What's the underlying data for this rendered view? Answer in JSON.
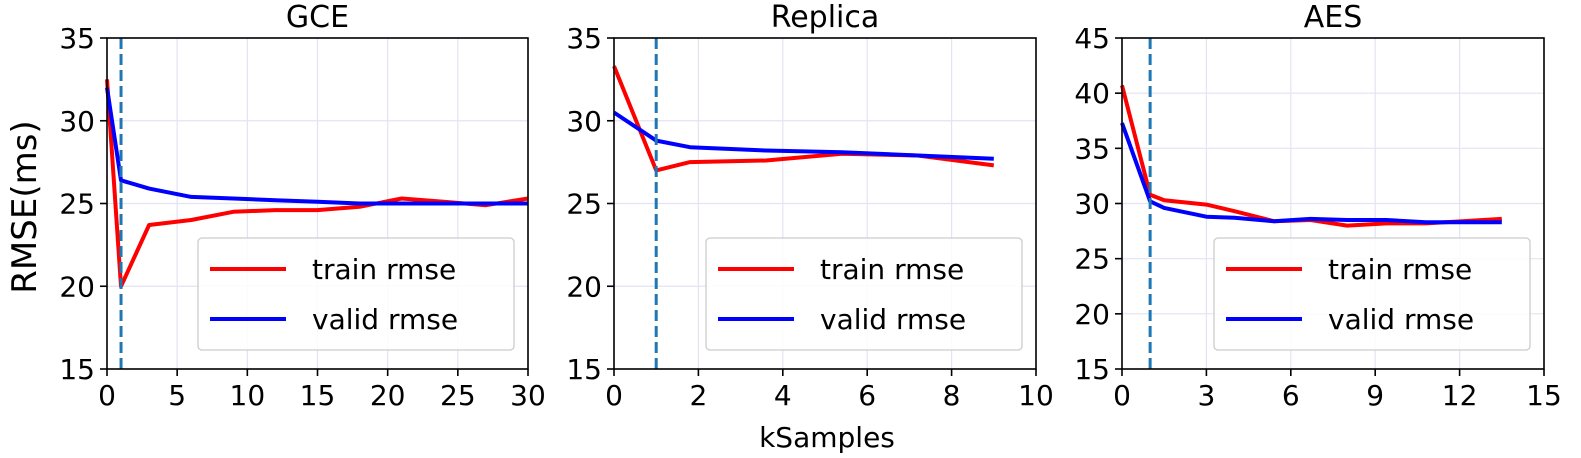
{
  "figure": {
    "ylabel": "RMSE(ms)",
    "xlabel": "kSamples"
  },
  "chart_data": [
    {
      "type": "line",
      "title": "GCE",
      "xlim": [
        0,
        30
      ],
      "ylim": [
        15,
        35
      ],
      "xticks": [
        0,
        5,
        10,
        15,
        20,
        25,
        30
      ],
      "yticks": [
        15,
        20,
        25,
        30,
        35
      ],
      "grid": true,
      "legend": "lower-right",
      "vline": 1,
      "series": [
        {
          "name": "train rmse",
          "color": "#ff0000",
          "x": [
            0,
            1,
            3,
            6,
            9,
            12,
            15,
            18,
            21,
            24,
            27,
            30
          ],
          "y": [
            32.5,
            20.0,
            23.7,
            24.0,
            24.5,
            24.6,
            24.6,
            24.8,
            25.3,
            25.1,
            24.9,
            25.3
          ]
        },
        {
          "name": "valid rmse",
          "color": "#0000ff",
          "x": [
            0,
            1,
            3,
            6,
            9,
            12,
            15,
            18,
            21,
            24,
            27,
            30
          ],
          "y": [
            32.0,
            26.4,
            25.9,
            25.4,
            25.3,
            25.2,
            25.1,
            25.0,
            25.0,
            25.0,
            25.0,
            25.0
          ]
        }
      ]
    },
    {
      "type": "line",
      "title": "Replica",
      "xlim": [
        0,
        10
      ],
      "ylim": [
        15,
        35
      ],
      "xticks": [
        0,
        2,
        4,
        6,
        8,
        10
      ],
      "yticks": [
        15,
        20,
        25,
        30,
        35
      ],
      "grid": true,
      "legend": "lower-right",
      "vline": 1,
      "series": [
        {
          "name": "train rmse",
          "color": "#ff0000",
          "x": [
            0,
            1,
            1.8,
            3.6,
            5.4,
            7.2,
            9
          ],
          "y": [
            33.3,
            27.0,
            27.5,
            27.6,
            28.0,
            27.9,
            27.3
          ]
        },
        {
          "name": "valid rmse",
          "color": "#0000ff",
          "x": [
            0,
            1,
            1.8,
            3.6,
            5.4,
            7.2,
            9
          ],
          "y": [
            30.5,
            28.8,
            28.4,
            28.2,
            28.1,
            27.9,
            27.7
          ]
        }
      ]
    },
    {
      "type": "line",
      "title": "AES",
      "xlim": [
        0,
        15
      ],
      "ylim": [
        15,
        45
      ],
      "xticks": [
        0,
        3,
        6,
        9,
        12,
        15
      ],
      "yticks": [
        15,
        20,
        25,
        30,
        35,
        40,
        45
      ],
      "grid": true,
      "legend": "lower-right",
      "vline": 1,
      "series": [
        {
          "name": "train rmse",
          "color": "#ff0000",
          "x": [
            0,
            1,
            1.5,
            3,
            4,
            5.4,
            6.7,
            8,
            9.4,
            10.8,
            12.1,
            13.5
          ],
          "y": [
            40.7,
            30.8,
            30.3,
            29.9,
            29.3,
            28.4,
            28.5,
            28.0,
            28.2,
            28.2,
            28.4,
            28.6
          ]
        },
        {
          "name": "valid rmse",
          "color": "#0000ff",
          "x": [
            0,
            1,
            1.5,
            3,
            4,
            5.4,
            6.7,
            8,
            9.4,
            10.8,
            12.1,
            13.5
          ],
          "y": [
            37.3,
            30.2,
            29.6,
            28.8,
            28.7,
            28.4,
            28.6,
            28.5,
            28.5,
            28.3,
            28.3,
            28.3
          ]
        }
      ]
    }
  ]
}
